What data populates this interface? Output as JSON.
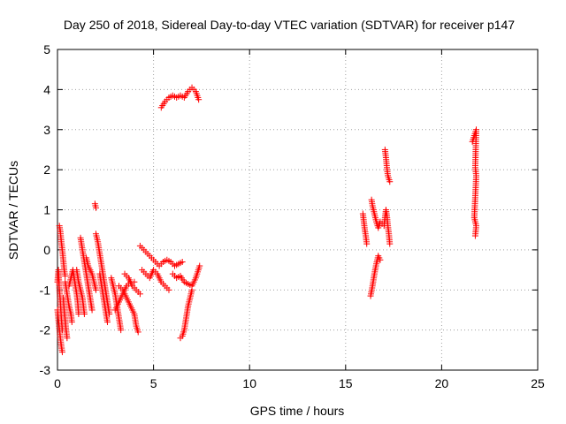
{
  "chart_data": {
    "type": "scatter",
    "title": "Day 250 of 2018, Sidereal Day-to-day VTEC variation (SDTVAR) for receiver p147",
    "xlabel": "GPS time / hours",
    "ylabel": "SDTVAR / TECUs",
    "xlim": [
      0,
      25
    ],
    "ylim": [
      -3,
      5
    ],
    "xticks": [
      0,
      5,
      10,
      15,
      20,
      25
    ],
    "yticks": [
      -3,
      -2,
      -1,
      0,
      1,
      2,
      3,
      4,
      5
    ],
    "xtick_labels": [
      "0",
      "5",
      "10",
      "15",
      "20",
      "25"
    ],
    "ytick_labels": [
      "-3",
      "-2",
      "-1",
      "0",
      "1",
      "2",
      "3",
      "4",
      "5"
    ],
    "grid": true,
    "marker": "+",
    "color": "#ff0000",
    "series": [
      {
        "name": "SDTVAR",
        "segments": [
          [
            [
              0.0,
              -0.8
            ],
            [
              0.05,
              -0.5
            ],
            [
              0.1,
              -1.0
            ],
            [
              0.15,
              -1.3
            ],
            [
              0.2,
              -1.7
            ],
            [
              0.25,
              -2.0
            ]
          ],
          [
            [
              0.0,
              -1.5
            ],
            [
              0.08,
              -1.9
            ],
            [
              0.15,
              -2.2
            ],
            [
              0.2,
              -2.4
            ],
            [
              0.25,
              -2.55
            ]
          ],
          [
            [
              0.1,
              0.6
            ],
            [
              0.15,
              0.45
            ],
            [
              0.2,
              0.2
            ],
            [
              0.25,
              0.0
            ],
            [
              0.3,
              -0.25
            ],
            [
              0.35,
              -0.5
            ],
            [
              0.4,
              -0.65
            ]
          ],
          [
            [
              0.3,
              -1.2
            ],
            [
              0.35,
              -1.5
            ],
            [
              0.4,
              -1.75
            ],
            [
              0.45,
              -2.0
            ],
            [
              0.5,
              -2.2
            ]
          ],
          [
            [
              0.4,
              -0.8
            ],
            [
              0.5,
              -1.1
            ],
            [
              0.6,
              -1.4
            ],
            [
              0.7,
              -1.6
            ],
            [
              0.75,
              -1.8
            ]
          ],
          [
            [
              0.6,
              -0.9
            ],
            [
              0.7,
              -0.7
            ],
            [
              0.8,
              -0.5
            ],
            [
              0.9,
              -0.8
            ],
            [
              1.0,
              -1.1
            ],
            [
              1.05,
              -1.3
            ],
            [
              1.1,
              -1.6
            ]
          ],
          [
            [
              1.0,
              -0.5
            ],
            [
              1.1,
              -0.8
            ],
            [
              1.2,
              -1.0
            ],
            [
              1.3,
              -1.2
            ],
            [
              1.4,
              -1.6
            ]
          ],
          [
            [
              1.2,
              0.3
            ],
            [
              1.3,
              0.0
            ],
            [
              1.4,
              -0.3
            ],
            [
              1.5,
              -0.6
            ],
            [
              1.6,
              -0.9
            ],
            [
              1.7,
              -1.2
            ],
            [
              1.8,
              -1.5
            ]
          ],
          [
            [
              1.5,
              -0.2
            ],
            [
              1.6,
              -0.4
            ],
            [
              1.7,
              -0.5
            ],
            [
              1.8,
              -0.6
            ],
            [
              1.9,
              -0.8
            ],
            [
              2.0,
              -1.0
            ]
          ],
          [
            [
              1.95,
              1.15
            ],
            [
              2.0,
              1.05
            ]
          ],
          [
            [
              2.0,
              0.4
            ],
            [
              2.1,
              0.2
            ],
            [
              2.2,
              -0.1
            ],
            [
              2.3,
              -0.4
            ],
            [
              2.4,
              -0.7
            ],
            [
              2.5,
              -1.0
            ],
            [
              2.6,
              -1.3
            ],
            [
              2.7,
              -1.6
            ]
          ],
          [
            [
              2.2,
              -0.6
            ],
            [
              2.3,
              -0.9
            ],
            [
              2.4,
              -1.2
            ],
            [
              2.5,
              -1.5
            ],
            [
              2.6,
              -1.8
            ]
          ],
          [
            [
              2.8,
              -0.7
            ],
            [
              2.9,
              -0.9
            ],
            [
              3.0,
              -1.1
            ],
            [
              3.1,
              -1.4
            ],
            [
              3.2,
              -1.7
            ],
            [
              3.3,
              -2.0
            ]
          ],
          [
            [
              3.0,
              -1.5
            ],
            [
              3.2,
              -1.3
            ],
            [
              3.4,
              -1.1
            ],
            [
              3.6,
              -0.9
            ],
            [
              3.8,
              -0.8
            ],
            [
              4.0,
              -0.8
            ]
          ],
          [
            [
              3.2,
              -0.9
            ],
            [
              3.4,
              -1.0
            ],
            [
              3.6,
              -1.2
            ],
            [
              3.8,
              -1.4
            ],
            [
              4.0,
              -1.6
            ],
            [
              4.1,
              -1.9
            ],
            [
              4.2,
              -2.05
            ]
          ],
          [
            [
              3.5,
              -0.6
            ],
            [
              3.7,
              -0.7
            ],
            [
              3.9,
              -0.9
            ],
            [
              4.1,
              -1.0
            ],
            [
              4.3,
              -1.1
            ]
          ],
          [
            [
              4.3,
              0.1
            ],
            [
              4.5,
              0.0
            ],
            [
              4.7,
              -0.1
            ],
            [
              4.9,
              -0.2
            ],
            [
              5.1,
              -0.3
            ],
            [
              5.3,
              -0.4
            ],
            [
              5.5,
              -0.3
            ],
            [
              5.7,
              -0.25
            ],
            [
              5.9,
              -0.3
            ],
            [
              6.1,
              -0.4
            ],
            [
              6.3,
              -0.35
            ],
            [
              6.5,
              -0.3
            ]
          ],
          [
            [
              4.4,
              -0.5
            ],
            [
              4.6,
              -0.6
            ],
            [
              4.8,
              -0.7
            ],
            [
              5.0,
              -0.5
            ],
            [
              5.2,
              -0.6
            ],
            [
              5.4,
              -0.8
            ],
            [
              5.6,
              -0.9
            ],
            [
              5.8,
              -1.0
            ]
          ],
          [
            [
              6.0,
              -0.6
            ],
            [
              6.2,
              -0.7
            ],
            [
              6.4,
              -0.65
            ],
            [
              6.6,
              -0.8
            ],
            [
              6.8,
              -0.85
            ],
            [
              7.0,
              -0.9
            ],
            [
              7.2,
              -0.7
            ],
            [
              7.4,
              -0.4
            ]
          ],
          [
            [
              6.4,
              -2.2
            ],
            [
              6.5,
              -2.15
            ],
            [
              6.6,
              -2.0
            ],
            [
              6.7,
              -1.7
            ],
            [
              6.8,
              -1.4
            ],
            [
              6.9,
              -1.2
            ],
            [
              7.0,
              -1.0
            ]
          ],
          [
            [
              5.4,
              3.55
            ],
            [
              5.6,
              3.7
            ],
            [
              5.8,
              3.8
            ],
            [
              6.0,
              3.85
            ],
            [
              6.2,
              3.8
            ],
            [
              6.4,
              3.85
            ],
            [
              6.6,
              3.8
            ],
            [
              6.8,
              3.95
            ],
            [
              7.0,
              4.05
            ],
            [
              7.2,
              3.95
            ],
            [
              7.35,
              3.75
            ]
          ],
          [
            [
              15.9,
              0.9
            ],
            [
              15.95,
              0.7
            ],
            [
              16.0,
              0.5
            ],
            [
              16.05,
              0.35
            ],
            [
              16.1,
              0.15
            ]
          ],
          [
            [
              16.3,
              -1.15
            ],
            [
              16.4,
              -0.9
            ],
            [
              16.5,
              -0.6
            ],
            [
              16.6,
              -0.35
            ],
            [
              16.7,
              -0.15
            ],
            [
              16.8,
              -0.25
            ]
          ],
          [
            [
              16.35,
              1.25
            ],
            [
              16.4,
              1.1
            ],
            [
              16.5,
              0.9
            ],
            [
              16.6,
              0.7
            ],
            [
              16.7,
              0.55
            ],
            [
              16.8,
              0.7
            ],
            [
              16.9,
              0.65
            ]
          ],
          [
            [
              17.0,
              0.6
            ],
            [
              17.05,
              0.8
            ],
            [
              17.1,
              1.0
            ],
            [
              17.15,
              0.85
            ],
            [
              17.2,
              0.6
            ],
            [
              17.25,
              0.4
            ],
            [
              17.3,
              0.15
            ]
          ],
          [
            [
              17.05,
              2.5
            ],
            [
              17.1,
              2.3
            ],
            [
              17.15,
              2.05
            ],
            [
              17.2,
              1.85
            ],
            [
              17.3,
              1.7
            ]
          ],
          [
            [
              21.6,
              2.7
            ],
            [
              21.7,
              2.85
            ],
            [
              21.8,
              3.0
            ],
            [
              21.75,
              2.05
            ],
            [
              21.8,
              1.85
            ],
            [
              21.7,
              0.8
            ],
            [
              21.8,
              0.6
            ],
            [
              21.75,
              0.35
            ]
          ]
        ]
      }
    ]
  }
}
